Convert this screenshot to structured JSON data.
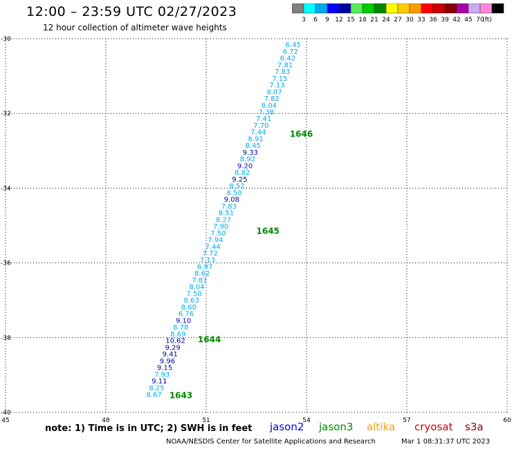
{
  "header": {
    "title": "12:00 – 23:59 UTC 02/27/2023",
    "subtitle": "12 hour collection of altimeter wave heights"
  },
  "legend": {
    "unit": "(ft)",
    "colors": [
      "#808080",
      "#00ffff",
      "#00a8f0",
      "#0000ff",
      "#0000a0",
      "#55ee55",
      "#00cc00",
      "#008800",
      "#ffff00",
      "#ffcc00",
      "#ff9900",
      "#ff0000",
      "#cc0000",
      "#880000",
      "#aa00aa",
      "#ccaaee",
      "#ff88dd",
      "#000000"
    ],
    "labels": [
      "3",
      "6",
      "9",
      "12",
      "15",
      "18",
      "21",
      "24",
      "27",
      "30",
      "33",
      "36",
      "39",
      "42",
      "45",
      "70"
    ]
  },
  "chart_data": {
    "type": "scatter",
    "xlim": [
      45,
      60
    ],
    "ylim": [
      -40,
      -30
    ],
    "x_ticks": [
      "45",
      "48",
      "51",
      "54",
      "57",
      "60"
    ],
    "y_ticks": [
      "-30",
      "-32",
      "-34",
      "-36",
      "-38",
      "-40"
    ],
    "grid": true,
    "points": [
      {
        "lon": 53.6,
        "lat": -30.15,
        "v": "6.45",
        "c": "#00a8f0"
      },
      {
        "lon": 53.52,
        "lat": -30.33,
        "v": "6.72",
        "c": "#00a8f0"
      },
      {
        "lon": 53.44,
        "lat": -30.51,
        "v": "6.42",
        "c": "#00a8f0"
      },
      {
        "lon": 53.36,
        "lat": -30.69,
        "v": "7.81",
        "c": "#00a8f0"
      },
      {
        "lon": 53.28,
        "lat": -30.87,
        "v": "7.83",
        "c": "#00a8f0"
      },
      {
        "lon": 53.2,
        "lat": -31.05,
        "v": "7.15",
        "c": "#00a8f0"
      },
      {
        "lon": 53.12,
        "lat": -31.23,
        "v": "7.13",
        "c": "#00a8f0"
      },
      {
        "lon": 53.04,
        "lat": -31.41,
        "v": "8.07",
        "c": "#00a8f0"
      },
      {
        "lon": 52.96,
        "lat": -31.59,
        "v": "7.82",
        "c": "#00a8f0"
      },
      {
        "lon": 52.88,
        "lat": -31.77,
        "v": "8.04",
        "c": "#00a8f0"
      },
      {
        "lon": 52.8,
        "lat": -31.95,
        "v": "7.38",
        "c": "#00a8f0"
      },
      {
        "lon": 52.72,
        "lat": -32.13,
        "v": "7.41",
        "c": "#00a8f0"
      },
      {
        "lon": 52.64,
        "lat": -32.31,
        "v": "7.70",
        "c": "#00a8f0"
      },
      {
        "lon": 52.56,
        "lat": -32.49,
        "v": "7.44",
        "c": "#00a8f0"
      },
      {
        "lon": 52.48,
        "lat": -32.67,
        "v": "8.91",
        "c": "#00a8f0"
      },
      {
        "lon": 52.4,
        "lat": -32.85,
        "v": "8.45",
        "c": "#00a8f0"
      },
      {
        "lon": 52.32,
        "lat": -33.03,
        "v": "9.33",
        "c": "#0000a0"
      },
      {
        "lon": 52.24,
        "lat": -33.21,
        "v": "8.92",
        "c": "#00a8f0"
      },
      {
        "lon": 52.16,
        "lat": -33.39,
        "v": "9.20",
        "c": "#0000ff"
      },
      {
        "lon": 52.08,
        "lat": -33.57,
        "v": "8.82",
        "c": "#00a8f0"
      },
      {
        "lon": 52.0,
        "lat": -33.75,
        "v": "9.25",
        "c": "#0000a0"
      },
      {
        "lon": 51.92,
        "lat": -33.93,
        "v": "8.52",
        "c": "#00a8f0"
      },
      {
        "lon": 51.84,
        "lat": -34.11,
        "v": "8.50",
        "c": "#00a8f0"
      },
      {
        "lon": 51.76,
        "lat": -34.29,
        "v": "9.08",
        "c": "#0000a0"
      },
      {
        "lon": 51.68,
        "lat": -34.47,
        "v": "7.83",
        "c": "#00a8f0"
      },
      {
        "lon": 51.6,
        "lat": -34.65,
        "v": "8.51",
        "c": "#00a8f0"
      },
      {
        "lon": 51.52,
        "lat": -34.83,
        "v": "8.27",
        "c": "#00a8f0"
      },
      {
        "lon": 51.44,
        "lat": -35.01,
        "v": "7.90",
        "c": "#00a8f0"
      },
      {
        "lon": 51.36,
        "lat": -35.19,
        "v": "7.50",
        "c": "#00a8f0"
      },
      {
        "lon": 51.28,
        "lat": -35.37,
        "v": "7.94",
        "c": "#00a8f0"
      },
      {
        "lon": 51.2,
        "lat": -35.55,
        "v": "7.44",
        "c": "#00a8f0"
      },
      {
        "lon": 51.12,
        "lat": -35.73,
        "v": "7.72",
        "c": "#00a8f0"
      },
      {
        "lon": 51.04,
        "lat": -35.91,
        "v": "7.13",
        "c": "#00a8f0"
      },
      {
        "lon": 50.96,
        "lat": -36.09,
        "v": "6.97",
        "c": "#00a8f0"
      },
      {
        "lon": 50.88,
        "lat": -36.27,
        "v": "8.62",
        "c": "#00a8f0"
      },
      {
        "lon": 50.8,
        "lat": -36.45,
        "v": "7.81",
        "c": "#00a8f0"
      },
      {
        "lon": 50.72,
        "lat": -36.63,
        "v": "8.04",
        "c": "#00a8f0"
      },
      {
        "lon": 50.64,
        "lat": -36.81,
        "v": "7.50",
        "c": "#00a8f0"
      },
      {
        "lon": 50.56,
        "lat": -36.99,
        "v": "8.63",
        "c": "#00a8f0"
      },
      {
        "lon": 50.48,
        "lat": -37.17,
        "v": "8.60",
        "c": "#00a8f0"
      },
      {
        "lon": 50.4,
        "lat": -37.35,
        "v": "6.76",
        "c": "#00a8f0"
      },
      {
        "lon": 50.32,
        "lat": -37.53,
        "v": "9.10",
        "c": "#0000a0"
      },
      {
        "lon": 50.24,
        "lat": -37.71,
        "v": "8.78",
        "c": "#00a8f0"
      },
      {
        "lon": 50.16,
        "lat": -37.89,
        "v": "8.69",
        "c": "#00a8f0"
      },
      {
        "lon": 50.08,
        "lat": -38.07,
        "v": "10.62",
        "c": "#0000a0"
      },
      {
        "lon": 50.0,
        "lat": -38.25,
        "v": "9.29",
        "c": "#0000a0"
      },
      {
        "lon": 49.92,
        "lat": -38.43,
        "v": "9.41",
        "c": "#0000a0"
      },
      {
        "lon": 49.84,
        "lat": -38.61,
        "v": "9.96",
        "c": "#0000a0"
      },
      {
        "lon": 49.76,
        "lat": -38.79,
        "v": "9.15",
        "c": "#0000a0"
      },
      {
        "lon": 49.68,
        "lat": -38.97,
        "v": "7.93",
        "c": "#00a8f0"
      },
      {
        "lon": 49.6,
        "lat": -39.15,
        "v": "9.11",
        "c": "#0000a0"
      },
      {
        "lon": 49.52,
        "lat": -39.33,
        "v": "8.25",
        "c": "#00a8f0"
      },
      {
        "lon": 49.44,
        "lat": -39.51,
        "v": "8.67",
        "c": "#00a8f0"
      }
    ],
    "time_labels": [
      {
        "lon": 53.5,
        "lat": -32.55,
        "text": "1646"
      },
      {
        "lon": 52.5,
        "lat": -35.15,
        "text": "1645"
      },
      {
        "lon": 50.75,
        "lat": -38.05,
        "text": "1644"
      },
      {
        "lon": 49.9,
        "lat": -39.55,
        "text": "1643"
      }
    ]
  },
  "footer": {
    "note": "note: 1) Time is in UTC; 2) SWH is in feet",
    "satellites": [
      {
        "name": "jason2",
        "color": "#0000dd"
      },
      {
        "name": "jason3",
        "color": "#008800"
      },
      {
        "name": "altika",
        "color": "#ff9900"
      },
      {
        "name": "cryosat",
        "color": "#cc0000"
      },
      {
        "name": "s3a",
        "color": "#880000"
      }
    ],
    "credit": "NOAA/NESDIS Center for Satellite Applications and Research",
    "timestamp": "Mar  1 08:31:37 UTC 2023"
  }
}
